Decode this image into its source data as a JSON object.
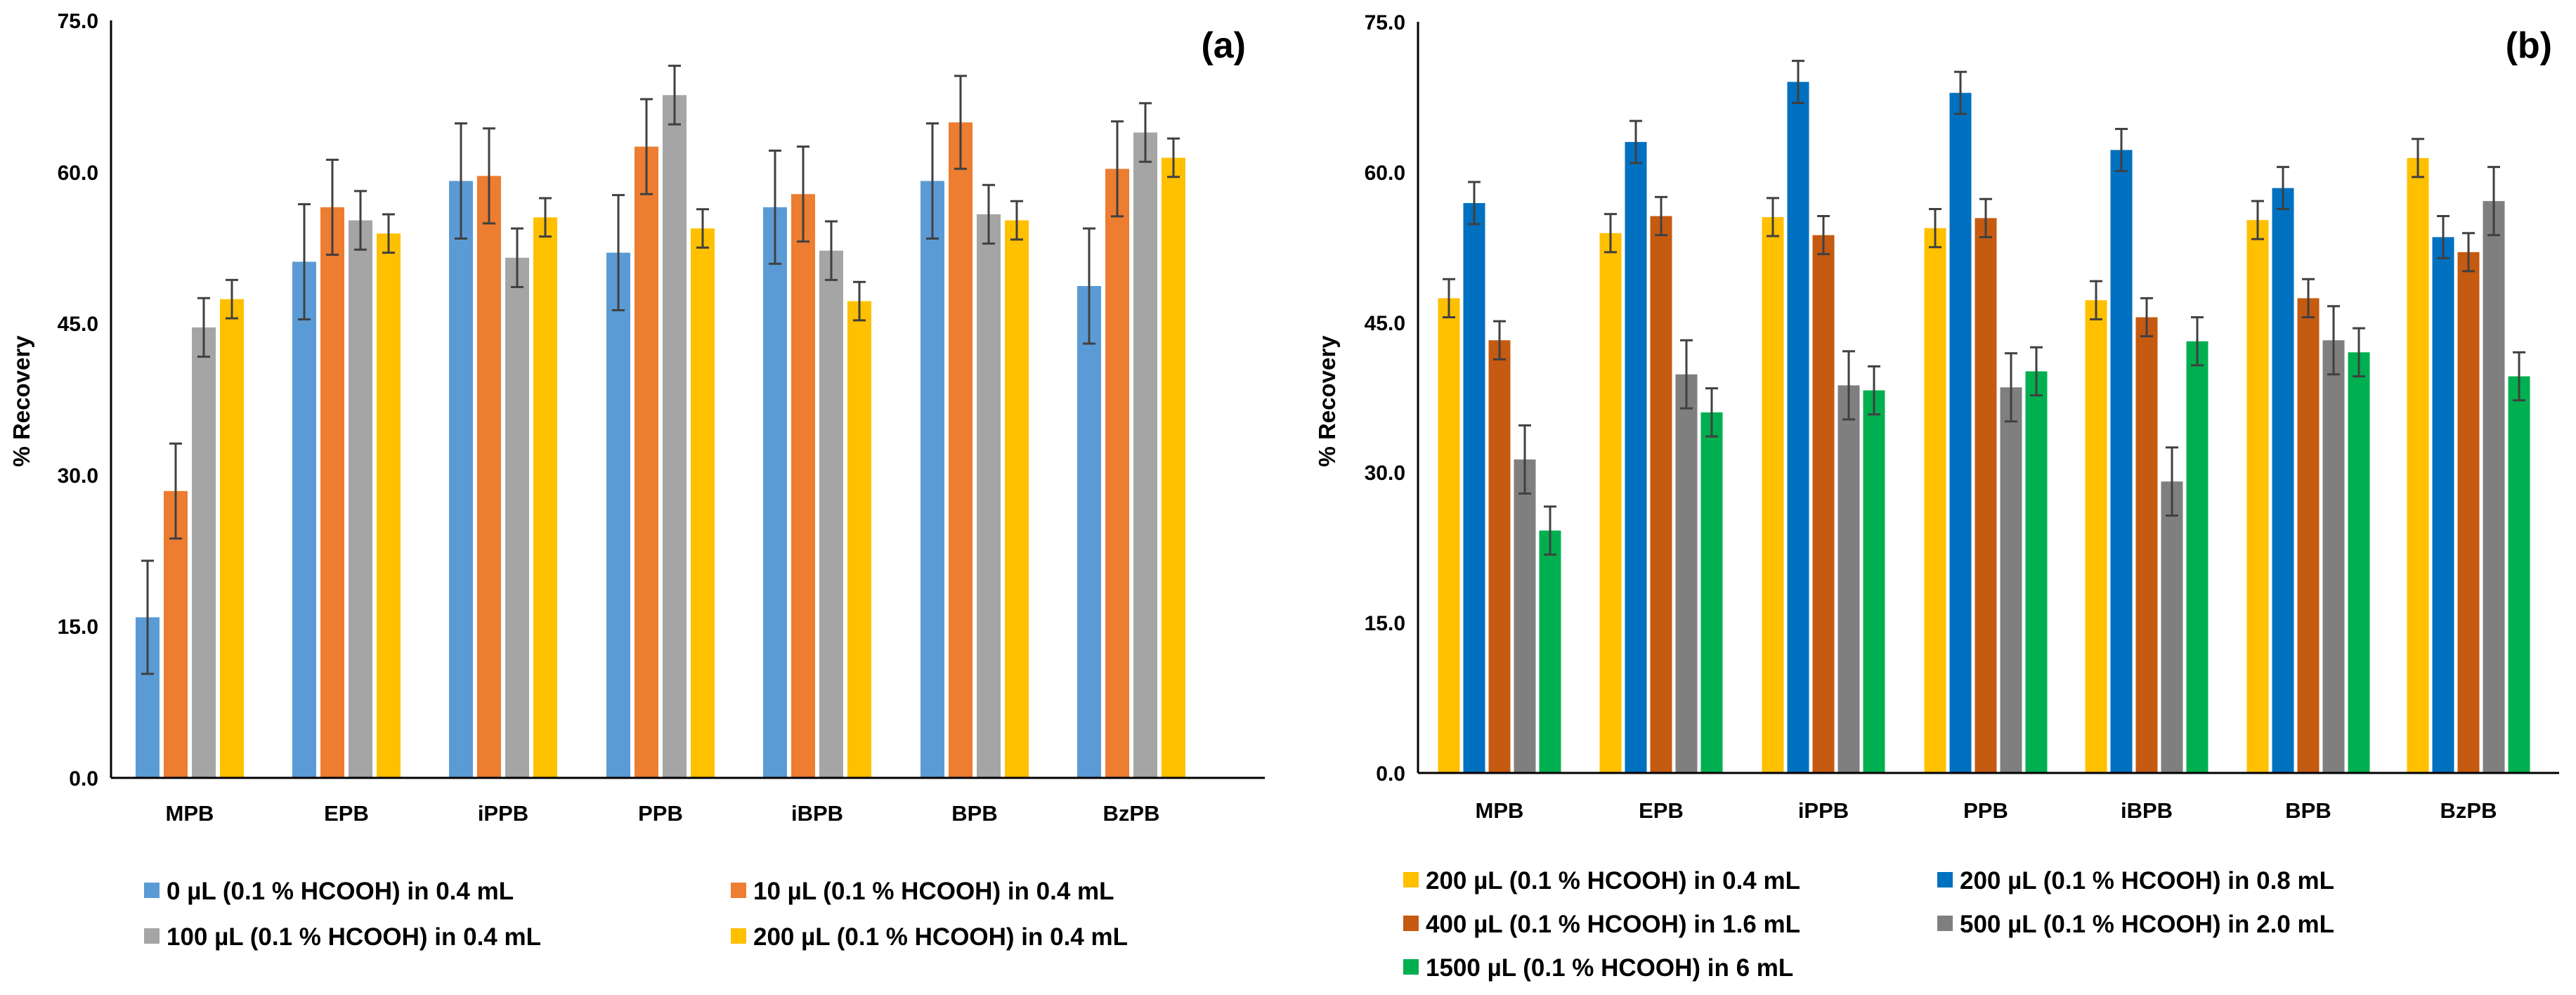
{
  "chart_data": [
    {
      "type": "bar",
      "panel_label": "(a)",
      "ylabel": "% Recovery",
      "xlabel": "",
      "ylim": [
        0,
        75
      ],
      "yticks": [
        "0.0",
        "15.0",
        "30.0",
        "45.0",
        "60.0",
        "75.0"
      ],
      "categories": [
        "MPB",
        "EPB",
        "iPPB",
        "PPB",
        "iBPB",
        "BPB",
        "BzPB"
      ],
      "legend_position": "bottom",
      "series": [
        {
          "name": "0 µL (0.1 % HCOOH) in 0.4 mL",
          "color": "#5B9BD5",
          "values": [
            15.9,
            51.1,
            59.1,
            52.0,
            56.5,
            59.1,
            48.7
          ],
          "errors": [
            5.6,
            5.7,
            5.7,
            5.7,
            5.6,
            5.7,
            5.7
          ]
        },
        {
          "name": "10 µL (0.1 % HCOOH) in 0.4 mL",
          "color": "#ED7D31",
          "values": [
            28.4,
            56.5,
            59.6,
            62.5,
            57.8,
            64.9,
            60.3
          ],
          "errors": [
            4.7,
            4.7,
            4.7,
            4.7,
            4.7,
            4.6,
            4.7
          ]
        },
        {
          "name": "100 µL (0.1 % HCOOH) in 0.4 mL",
          "color": "#A5A5A5",
          "values": [
            44.6,
            55.2,
            51.5,
            67.6,
            52.2,
            55.8,
            63.9
          ],
          "errors": [
            2.9,
            2.9,
            2.9,
            2.9,
            2.9,
            2.9,
            2.9
          ]
        },
        {
          "name": "200 µL (0.1 % HCOOH) in 0.4 mL",
          "color": "#FFC000",
          "values": [
            47.4,
            53.9,
            55.5,
            54.4,
            47.2,
            55.2,
            61.4
          ],
          "errors": [
            1.9,
            1.9,
            1.9,
            1.9,
            1.9,
            1.9,
            1.9
          ]
        }
      ]
    },
    {
      "type": "bar",
      "panel_label": "(b)",
      "ylabel": "% Recovery",
      "xlabel": "",
      "ylim": [
        0,
        75
      ],
      "yticks": [
        "0.0",
        "15.0",
        "30.0",
        "45.0",
        "60.0",
        "75.0"
      ],
      "categories": [
        "MPB",
        "EPB",
        "iPPB",
        "PPB",
        "iBPB",
        "BPB",
        "BzPB"
      ],
      "legend_position": "bottom",
      "series": [
        {
          "name": "200 µL (0.1 % HCOOH) in 0.4 mL",
          "color": "#FFC000",
          "values": [
            47.4,
            53.9,
            55.5,
            54.4,
            47.2,
            55.2,
            61.4
          ],
          "errors": [
            1.9,
            1.9,
            1.9,
            1.9,
            1.9,
            1.9,
            1.9
          ]
        },
        {
          "name": "200 µL (0.1 % HCOOH) in 0.8 mL",
          "color": "#0070C0",
          "values": [
            56.9,
            63.0,
            69.0,
            67.9,
            62.2,
            58.4,
            53.5
          ],
          "errors": [
            2.1,
            2.1,
            2.1,
            2.1,
            2.1,
            2.1,
            2.1
          ]
        },
        {
          "name": "400 µL (0.1 % HCOOH) in 1.6 mL",
          "color": "#C55A11",
          "values": [
            43.2,
            55.6,
            53.7,
            55.4,
            45.5,
            47.4,
            52.0
          ],
          "errors": [
            1.9,
            1.9,
            1.9,
            1.9,
            1.9,
            1.9,
            1.9
          ]
        },
        {
          "name": "500 µL (0.1 % HCOOH) in 2.0 mL",
          "color": "#7F7F7F",
          "values": [
            31.3,
            39.8,
            38.7,
            38.5,
            29.1,
            43.2,
            57.1
          ],
          "errors": [
            3.4,
            3.4,
            3.4,
            3.4,
            3.4,
            3.4,
            3.4
          ]
        },
        {
          "name": "1500 µL (0.1 % HCOOH) in 6 mL",
          "color": "#00B050",
          "values": [
            24.2,
            36.0,
            38.2,
            40.1,
            43.1,
            42.0,
            39.6
          ],
          "errors": [
            2.4,
            2.4,
            2.4,
            2.4,
            2.4,
            2.4,
            2.4
          ]
        }
      ]
    }
  ]
}
